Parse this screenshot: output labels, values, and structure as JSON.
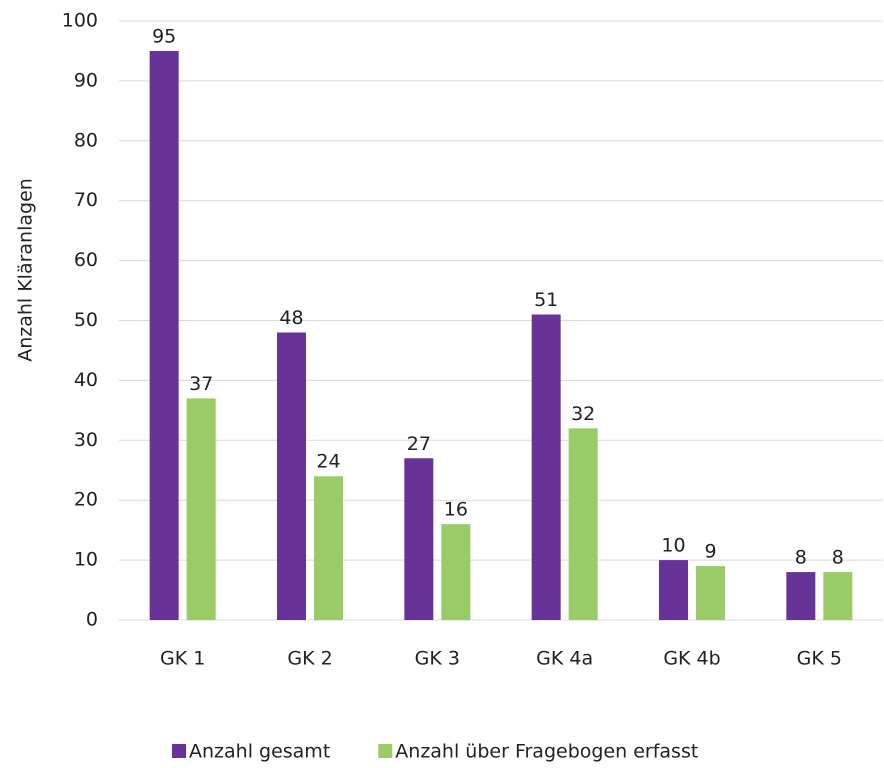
{
  "chart_data": {
    "type": "bar",
    "y_label": "Anzahl Kläranlagen",
    "categories": [
      "GK 1",
      "GK 2",
      "GK 3",
      "GK 4a",
      "GK 4b",
      "GK 5"
    ],
    "series": [
      {
        "name": "Anzahl gesamt",
        "color": "#673399",
        "values": [
          95,
          48,
          27,
          51,
          10,
          8
        ]
      },
      {
        "name": "Anzahl über Fragebogen erfasst",
        "color": "#99cc66",
        "values": [
          37,
          24,
          16,
          32,
          9,
          8
        ]
      }
    ],
    "ylim": [
      0,
      100
    ],
    "yticks": [
      0,
      10,
      20,
      30,
      40,
      50,
      60,
      70,
      80,
      90,
      100
    ],
    "grid": true,
    "legend": "bottom"
  }
}
